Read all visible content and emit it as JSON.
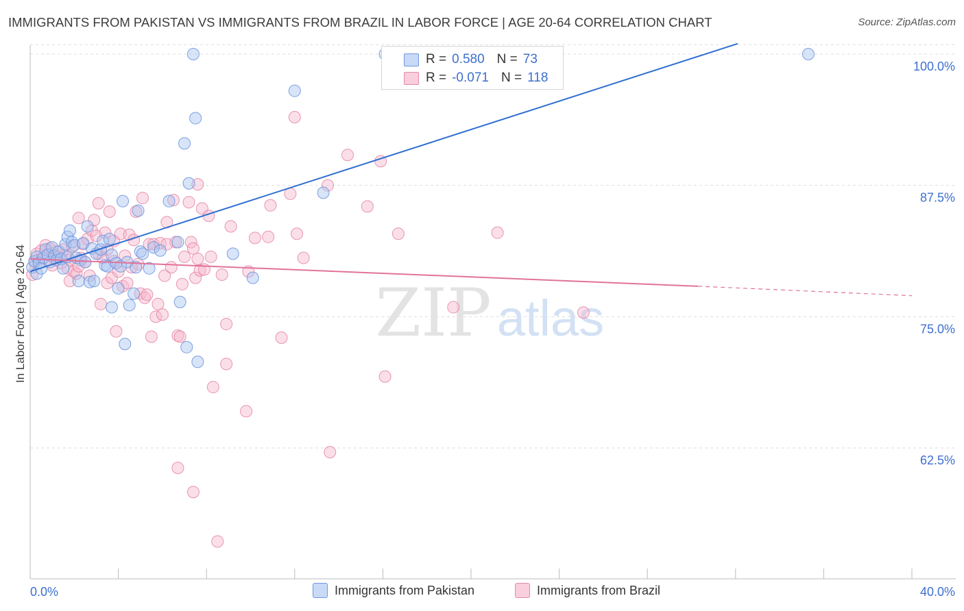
{
  "header": {
    "title": "IMMIGRANTS FROM PAKISTAN VS IMMIGRANTS FROM BRAZIL IN LABOR FORCE | AGE 20-64 CORRELATION CHART",
    "source": "Source: ZipAtlas.com"
  },
  "watermark": {
    "zip": "ZIP",
    "atlas": "atlas"
  },
  "legend": {
    "r_label": "R =",
    "n_label": "N =",
    "series": [
      {
        "r": "0.580",
        "n": "73"
      },
      {
        "r": "-0.071",
        "n": "118"
      }
    ]
  },
  "bottom_legend": [
    {
      "label": "Immigrants from Pakistan"
    },
    {
      "label": "Immigrants from Brazil"
    }
  ],
  "colors": {
    "pakistan_fill": "#a9c4f0",
    "pakistan_stroke": "#6f97de",
    "pakistan_line": "#2f6fd1",
    "brazil_fill": "#f6b7cb",
    "brazil_stroke": "#e68aa8",
    "brazil_line": "#e2729a",
    "tick_label": "#3d6fcf",
    "grid": "#dddddd"
  },
  "chart_data": {
    "type": "scatter",
    "title": "IMMIGRANTS FROM PAKISTAN VS IMMIGRANTS FROM BRAZIL IN LABOR FORCE | AGE 20-64 CORRELATION CHART",
    "xlabel": "",
    "ylabel": "In Labor Force | Age 20-64",
    "xlim": [
      0,
      40
    ],
    "ylim": [
      50,
      101
    ],
    "x_tick_labels": [
      {
        "value": 0,
        "label": "0.0%"
      },
      {
        "value": 40,
        "label": "40.0%"
      }
    ],
    "y_tick_labels": [
      {
        "value": 100,
        "label": "100.0%"
      },
      {
        "value": 87.5,
        "label": "87.5%"
      },
      {
        "value": 75,
        "label": "75.0%"
      },
      {
        "value": 62.5,
        "label": "62.5%"
      }
    ],
    "x_minor_ticks": [
      0,
      4,
      8,
      12,
      16,
      20,
      24,
      28,
      32,
      36,
      40
    ],
    "grid": true,
    "legend_position": "top-center",
    "series": [
      {
        "name": "Immigrants from Pakistan",
        "r": 0.58,
        "n": 73,
        "trend": {
          "x": [
            0,
            32.1
          ],
          "y": [
            79.3,
            101.0
          ]
        },
        "points": [
          [
            0.1,
            79.7
          ],
          [
            0.2,
            80.3
          ],
          [
            0.3,
            80.7
          ],
          [
            0.3,
            79.1
          ],
          [
            0.4,
            80.1
          ],
          [
            0.5,
            79.6
          ],
          [
            0.6,
            80.6
          ],
          [
            0.7,
            81.4
          ],
          [
            0.8,
            80.9
          ],
          [
            0.9,
            80.2
          ],
          [
            1.0,
            81.6
          ],
          [
            1.1,
            80.8
          ],
          [
            1.2,
            80.4
          ],
          [
            1.3,
            81.2
          ],
          [
            1.4,
            80.5
          ],
          [
            1.5,
            79.6
          ],
          [
            1.6,
            81.9
          ],
          [
            1.7,
            82.6
          ],
          [
            1.7,
            80.7
          ],
          [
            1.8,
            83.2
          ],
          [
            1.9,
            82.1
          ],
          [
            2.0,
            81.8
          ],
          [
            2.1,
            80.6
          ],
          [
            2.2,
            78.4
          ],
          [
            2.3,
            80.4
          ],
          [
            2.4,
            82.0
          ],
          [
            2.5,
            80.2
          ],
          [
            2.6,
            83.6
          ],
          [
            2.7,
            78.3
          ],
          [
            2.8,
            81.5
          ],
          [
            2.9,
            78.4
          ],
          [
            3.0,
            81.0
          ],
          [
            3.2,
            81.4
          ],
          [
            3.3,
            82.2
          ],
          [
            3.4,
            79.9
          ],
          [
            3.5,
            79.8
          ],
          [
            3.6,
            82.4
          ],
          [
            3.7,
            80.9
          ],
          [
            3.7,
            75.9
          ],
          [
            3.9,
            80.1
          ],
          [
            4.0,
            77.7
          ],
          [
            4.1,
            79.8
          ],
          [
            4.2,
            86.0
          ],
          [
            4.3,
            72.4
          ],
          [
            4.4,
            80.2
          ],
          [
            4.5,
            76.1
          ],
          [
            4.7,
            77.2
          ],
          [
            4.8,
            79.7
          ],
          [
            4.9,
            85.1
          ],
          [
            5.0,
            81.2
          ],
          [
            5.1,
            81.0
          ],
          [
            5.4,
            79.6
          ],
          [
            5.6,
            81.6
          ],
          [
            5.9,
            81.3
          ],
          [
            6.3,
            86.0
          ],
          [
            6.7,
            82.1
          ],
          [
            6.8,
            76.4
          ],
          [
            7.0,
            91.5
          ],
          [
            7.1,
            72.1
          ],
          [
            7.2,
            87.7
          ],
          [
            7.4,
            100.0
          ],
          [
            7.5,
            93.9
          ],
          [
            7.6,
            70.7
          ],
          [
            9.2,
            81.0
          ],
          [
            10.1,
            78.7
          ],
          [
            12.0,
            96.5
          ],
          [
            13.3,
            86.8
          ],
          [
            16.1,
            100.0
          ],
          [
            35.3,
            100.0
          ]
        ]
      },
      {
        "name": "Immigrants from Brazil",
        "r": -0.071,
        "n": 118,
        "trend": {
          "x": [
            0,
            30.3
          ],
          "y": [
            80.5,
            77.9
          ]
        },
        "trend_extension": {
          "x": [
            30.3,
            40
          ],
          "y": [
            77.9,
            77.0
          ]
        },
        "points": [
          [
            0.1,
            79.0
          ],
          [
            0.2,
            80.2
          ],
          [
            0.3,
            81.0
          ],
          [
            0.4,
            80.4
          ],
          [
            0.5,
            81.3
          ],
          [
            0.6,
            80.6
          ],
          [
            0.7,
            81.8
          ],
          [
            0.8,
            80.9
          ],
          [
            0.9,
            81.5
          ],
          [
            1.0,
            79.9
          ],
          [
            1.1,
            80.5
          ],
          [
            1.2,
            81.2
          ],
          [
            1.3,
            80.7
          ],
          [
            1.4,
            80.1
          ],
          [
            1.5,
            81.4
          ],
          [
            1.6,
            80.8
          ],
          [
            1.7,
            79.6
          ],
          [
            1.8,
            80.4
          ],
          [
            1.9,
            81.7
          ],
          [
            1.8,
            78.4
          ],
          [
            2.0,
            79.3
          ],
          [
            2.1,
            79.1
          ],
          [
            2.2,
            79.8
          ],
          [
            2.3,
            80.6
          ],
          [
            2.2,
            84.4
          ],
          [
            2.4,
            81.9
          ],
          [
            2.5,
            80.2
          ],
          [
            2.6,
            82.4
          ],
          [
            2.7,
            78.9
          ],
          [
            2.8,
            83.2
          ],
          [
            2.9,
            84.2
          ],
          [
            3.0,
            82.7
          ],
          [
            3.1,
            85.8
          ],
          [
            3.1,
            81.0
          ],
          [
            3.2,
            76.2
          ],
          [
            3.3,
            80.6
          ],
          [
            3.4,
            83.0
          ],
          [
            3.5,
            81.4
          ],
          [
            3.5,
            78.2
          ],
          [
            3.6,
            85.0
          ],
          [
            3.7,
            78.7
          ],
          [
            3.8,
            82.2
          ],
          [
            3.8,
            80.3
          ],
          [
            3.9,
            73.6
          ],
          [
            4.0,
            79.3
          ],
          [
            4.1,
            82.9
          ],
          [
            4.2,
            77.9
          ],
          [
            4.3,
            80.8
          ],
          [
            4.4,
            78.2
          ],
          [
            4.5,
            82.8
          ],
          [
            4.6,
            79.7
          ],
          [
            4.7,
            82.3
          ],
          [
            4.8,
            85.0
          ],
          [
            4.9,
            80.0
          ],
          [
            5.0,
            77.2
          ],
          [
            5.1,
            86.3
          ],
          [
            5.2,
            76.8
          ],
          [
            5.3,
            77.1
          ],
          [
            5.4,
            81.9
          ],
          [
            5.5,
            73.1
          ],
          [
            5.6,
            81.9
          ],
          [
            5.7,
            75.0
          ],
          [
            5.8,
            76.2
          ],
          [
            5.9,
            82.0
          ],
          [
            6.0,
            75.2
          ],
          [
            6.1,
            78.9
          ],
          [
            6.2,
            84.0
          ],
          [
            6.2,
            81.9
          ],
          [
            6.4,
            79.7
          ],
          [
            6.5,
            86.1
          ],
          [
            6.6,
            82.1
          ],
          [
            6.7,
            73.2
          ],
          [
            6.8,
            73.1
          ],
          [
            6.9,
            78.1
          ],
          [
            7.0,
            80.7
          ],
          [
            7.2,
            85.9
          ],
          [
            7.3,
            82.1
          ],
          [
            7.4,
            81.5
          ],
          [
            7.5,
            78.7
          ],
          [
            7.6,
            87.6
          ],
          [
            7.6,
            80.5
          ],
          [
            7.7,
            79.4
          ],
          [
            7.8,
            85.3
          ],
          [
            7.9,
            79.5
          ],
          [
            8.1,
            84.6
          ],
          [
            8.2,
            80.7
          ],
          [
            8.3,
            68.3
          ],
          [
            8.5,
            53.6
          ],
          [
            8.7,
            79.0
          ],
          [
            8.9,
            70.5
          ],
          [
            8.9,
            74.3
          ],
          [
            9.1,
            83.6
          ],
          [
            9.8,
            66.0
          ],
          [
            9.9,
            79.3
          ],
          [
            10.2,
            82.5
          ],
          [
            10.8,
            82.6
          ],
          [
            10.9,
            85.6
          ],
          [
            11.4,
            73.0
          ],
          [
            11.8,
            86.7
          ],
          [
            12.0,
            94.0
          ],
          [
            12.1,
            82.9
          ],
          [
            12.4,
            80.6
          ],
          [
            13.5,
            87.5
          ],
          [
            13.6,
            62.1
          ],
          [
            14.4,
            90.4
          ],
          [
            15.3,
            85.5
          ],
          [
            15.9,
            89.8
          ],
          [
            16.1,
            69.3
          ],
          [
            16.7,
            82.9
          ],
          [
            19.2,
            75.9
          ],
          [
            21.2,
            83.0
          ],
          [
            25.1,
            75.4
          ],
          [
            7.4,
            58.3
          ],
          [
            6.7,
            60.6
          ]
        ]
      }
    ]
  }
}
